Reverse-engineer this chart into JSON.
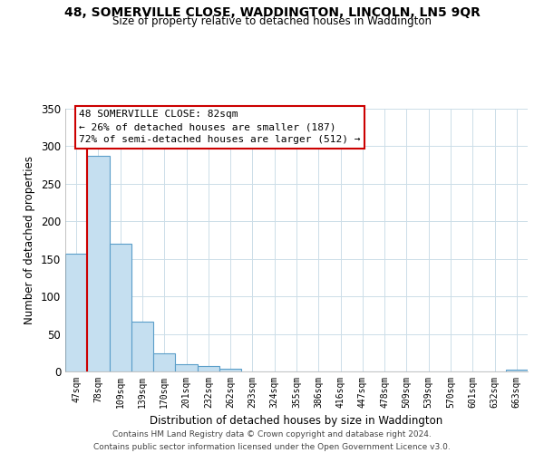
{
  "title": "48, SOMERVILLE CLOSE, WADDINGTON, LINCOLN, LN5 9QR",
  "subtitle": "Size of property relative to detached houses in Waddington",
  "xlabel": "Distribution of detached houses by size in Waddington",
  "ylabel": "Number of detached properties",
  "bin_labels": [
    "47sqm",
    "78sqm",
    "109sqm",
    "139sqm",
    "170sqm",
    "201sqm",
    "232sqm",
    "262sqm",
    "293sqm",
    "324sqm",
    "355sqm",
    "386sqm",
    "416sqm",
    "447sqm",
    "478sqm",
    "509sqm",
    "539sqm",
    "570sqm",
    "601sqm",
    "632sqm",
    "663sqm"
  ],
  "bar_heights": [
    157,
    287,
    170,
    66,
    24,
    10,
    7,
    4,
    0,
    0,
    0,
    0,
    0,
    0,
    0,
    0,
    0,
    0,
    0,
    0,
    3
  ],
  "bar_color": "#c5dff0",
  "bar_edge_color": "#5a9ec9",
  "vline_x": 0.5,
  "vline_color": "#cc0000",
  "ylim": [
    0,
    350
  ],
  "yticks": [
    0,
    50,
    100,
    150,
    200,
    250,
    300,
    350
  ],
  "annotation_title": "48 SOMERVILLE CLOSE: 82sqm",
  "annotation_line1": "← 26% of detached houses are smaller (187)",
  "annotation_line2": "72% of semi-detached houses are larger (512) →",
  "footer_line1": "Contains HM Land Registry data © Crown copyright and database right 2024.",
  "footer_line2": "Contains public sector information licensed under the Open Government Licence v3.0.",
  "background_color": "#ffffff",
  "grid_color": "#ccdde8"
}
